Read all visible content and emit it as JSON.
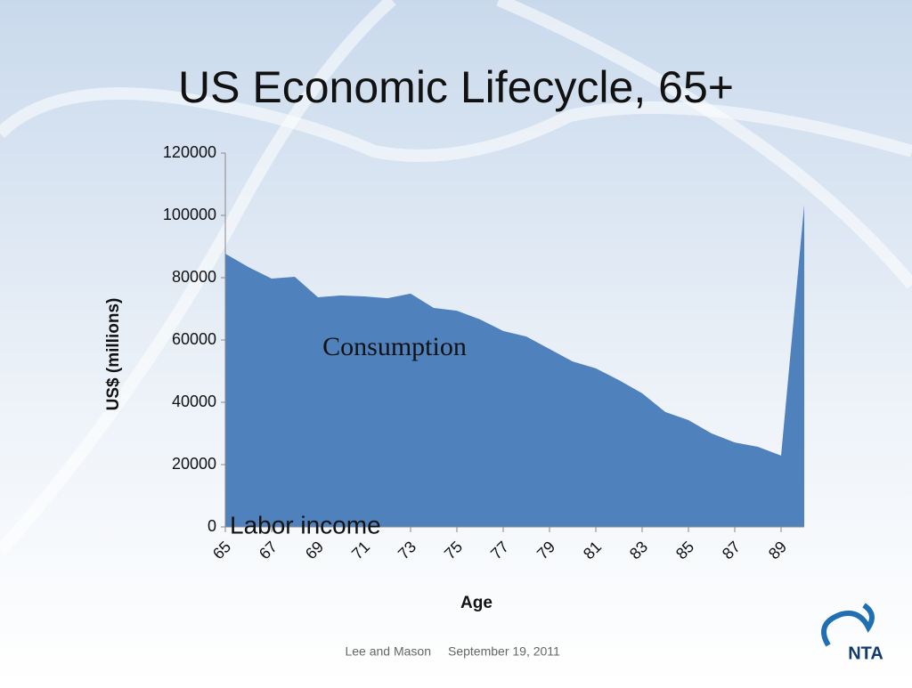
{
  "title": "US Economic Lifecycle, 65+",
  "chart_data": {
    "type": "area",
    "x": [
      65,
      66,
      67,
      68,
      69,
      70,
      71,
      72,
      73,
      74,
      75,
      76,
      77,
      78,
      79,
      80,
      81,
      82,
      83,
      84,
      85,
      86,
      87,
      88,
      89,
      90
    ],
    "values": [
      87700,
      83400,
      79700,
      80300,
      73700,
      74300,
      74000,
      73400,
      74900,
      70300,
      69400,
      66600,
      62900,
      61100,
      57100,
      53100,
      50900,
      47100,
      42900,
      36900,
      34300,
      30000,
      27100,
      25700,
      22900,
      103400
    ],
    "color": "#4f81bd",
    "xlabel": "Age",
    "ylabel": "US$ (millions)",
    "xlim": [
      65,
      90
    ],
    "xticks": [
      65,
      67,
      69,
      71,
      73,
      75,
      77,
      79,
      81,
      83,
      85,
      87,
      89
    ],
    "ylim": [
      0,
      120000
    ],
    "yticks": [
      0,
      20000,
      40000,
      60000,
      80000,
      100000,
      120000
    ],
    "annotations": [
      "Consumption",
      "Labor income"
    ]
  },
  "footer": {
    "authors": "Lee and Mason",
    "date": "September 19, 2011"
  },
  "logo": "NTA"
}
